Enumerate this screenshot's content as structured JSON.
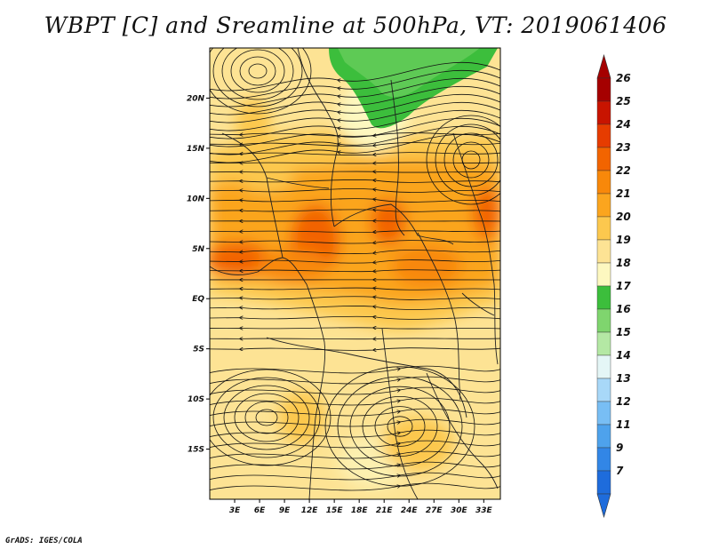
{
  "title": "WBPT [C] and Sreamline at 500hPa, VT: 2019061406",
  "credit": "GrADS: IGES/COLA",
  "map": {
    "lat_labels": [
      "20N",
      "15N",
      "10N",
      "5N",
      "EQ",
      "5S",
      "10S",
      "15S"
    ],
    "lat_values": [
      20,
      15,
      10,
      5,
      0,
      -5,
      -10,
      -15
    ],
    "lon_labels": [
      "3E",
      "6E",
      "9E",
      "12E",
      "15E",
      "18E",
      "21E",
      "24E",
      "27E",
      "30E",
      "33E"
    ],
    "lon_values": [
      3,
      6,
      9,
      12,
      15,
      18,
      21,
      24,
      27,
      30,
      33
    ],
    "lon_range": [
      0,
      35
    ],
    "lat_range": [
      -20,
      25
    ]
  },
  "colorbar": {
    "labels": [
      "26",
      "25",
      "24",
      "23",
      "22",
      "21",
      "20",
      "19",
      "18",
      "17",
      "16",
      "15",
      "14",
      "13",
      "12",
      "11",
      "9",
      "7"
    ],
    "colors": [
      "#a50000",
      "#c81400",
      "#e63c00",
      "#f26400",
      "#f8880a",
      "#fba51e",
      "#fcc84e",
      "#fde394",
      "#fdf8c0",
      "#3cbe3c",
      "#7fd56e",
      "#b4e8a4",
      "#e4f6f6",
      "#a8d8f8",
      "#78bef4",
      "#4ea2ec",
      "#3286e6",
      "#1e6cdc"
    ]
  }
}
